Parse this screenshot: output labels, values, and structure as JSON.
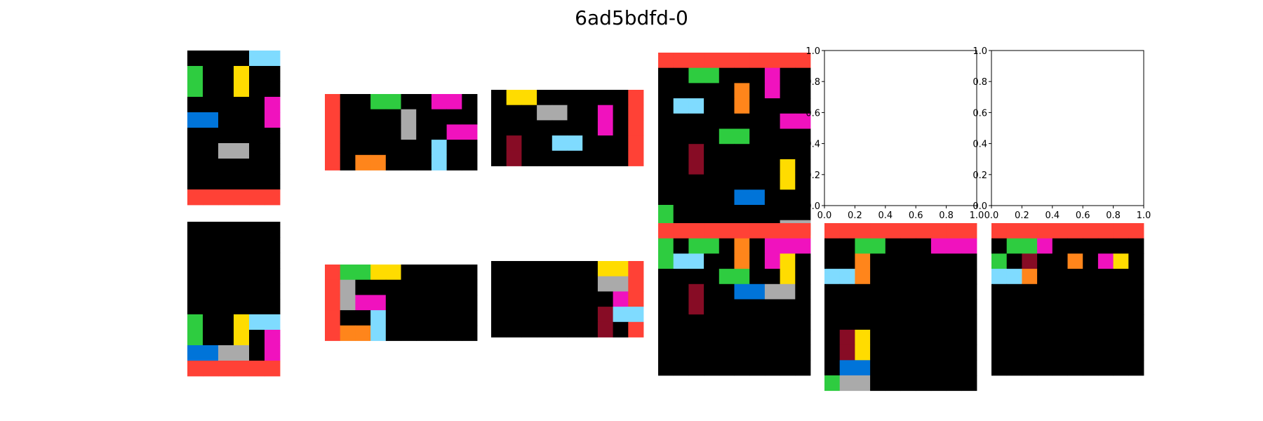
{
  "title": "6ad5bdfd-0",
  "colors": {
    "0": "#000000",
    "1": "#0074D9",
    "2": "#FF4136",
    "3": "#2ECC40",
    "4": "#FFDC00",
    "5": "#AAAAAA",
    "6": "#F012BE",
    "7": "#FF851B",
    "8": "#7FDBFF",
    "9": "#870C25"
  },
  "empty_axes_ticks": [
    "0.0",
    "0.2",
    "0.4",
    "0.6",
    "0.8",
    "1.0"
  ],
  "panels": [
    {
      "id": "train1-input",
      "grid": [
        [
          0,
          0,
          0,
          0,
          8,
          8
        ],
        [
          3,
          0,
          0,
          4,
          0,
          0
        ],
        [
          3,
          0,
          0,
          4,
          0,
          0
        ],
        [
          0,
          0,
          0,
          0,
          0,
          6
        ],
        [
          1,
          1,
          0,
          0,
          0,
          6
        ],
        [
          0,
          0,
          0,
          0,
          0,
          0
        ],
        [
          0,
          0,
          5,
          5,
          0,
          0
        ],
        [
          0,
          0,
          0,
          0,
          0,
          0
        ],
        [
          0,
          0,
          0,
          0,
          0,
          0
        ],
        [
          2,
          2,
          2,
          2,
          2,
          2
        ]
      ]
    },
    {
      "id": "train1-output",
      "grid": [
        [
          0,
          0,
          0,
          0,
          0,
          0
        ],
        [
          0,
          0,
          0,
          0,
          0,
          0
        ],
        [
          0,
          0,
          0,
          0,
          0,
          0
        ],
        [
          0,
          0,
          0,
          0,
          0,
          0
        ],
        [
          0,
          0,
          0,
          0,
          0,
          0
        ],
        [
          0,
          0,
          0,
          0,
          0,
          0
        ],
        [
          3,
          0,
          0,
          4,
          8,
          8
        ],
        [
          3,
          0,
          0,
          4,
          0,
          6
        ],
        [
          1,
          1,
          5,
          5,
          0,
          6
        ],
        [
          2,
          2,
          2,
          2,
          2,
          2
        ]
      ]
    },
    {
      "id": "train2-input",
      "grid": [
        [
          2,
          0,
          0,
          3,
          3,
          0,
          0,
          6,
          6,
          0
        ],
        [
          2,
          0,
          0,
          0,
          0,
          5,
          0,
          0,
          0,
          0
        ],
        [
          2,
          0,
          0,
          0,
          0,
          5,
          0,
          0,
          6,
          6
        ],
        [
          2,
          0,
          0,
          0,
          0,
          0,
          0,
          8,
          0,
          0
        ],
        [
          2,
          0,
          7,
          7,
          0,
          0,
          0,
          8,
          0,
          0
        ]
      ]
    },
    {
      "id": "train2-output",
      "grid": [
        [
          2,
          3,
          3,
          4,
          4,
          0,
          0,
          0,
          0,
          0
        ],
        [
          2,
          5,
          0,
          0,
          0,
          0,
          0,
          0,
          0,
          0
        ],
        [
          2,
          5,
          6,
          6,
          0,
          0,
          0,
          0,
          0,
          0
        ],
        [
          2,
          0,
          0,
          8,
          0,
          0,
          0,
          0,
          0,
          0
        ],
        [
          2,
          7,
          7,
          8,
          0,
          0,
          0,
          0,
          0,
          0
        ]
      ]
    },
    {
      "id": "train3-input",
      "grid": [
        [
          0,
          4,
          4,
          0,
          0,
          0,
          0,
          0,
          0,
          2
        ],
        [
          0,
          0,
          0,
          5,
          5,
          0,
          0,
          6,
          0,
          2
        ],
        [
          0,
          0,
          0,
          0,
          0,
          0,
          0,
          6,
          0,
          2
        ],
        [
          0,
          9,
          0,
          0,
          8,
          8,
          0,
          0,
          0,
          2
        ],
        [
          0,
          9,
          0,
          0,
          0,
          0,
          0,
          0,
          0,
          2
        ]
      ]
    },
    {
      "id": "train3-output",
      "grid": [
        [
          0,
          0,
          0,
          0,
          0,
          0,
          0,
          4,
          4,
          2
        ],
        [
          0,
          0,
          0,
          0,
          0,
          0,
          0,
          5,
          5,
          2
        ],
        [
          0,
          0,
          0,
          0,
          0,
          0,
          0,
          0,
          6,
          2
        ],
        [
          0,
          0,
          0,
          0,
          0,
          0,
          0,
          9,
          8,
          8
        ],
        [
          0,
          0,
          0,
          0,
          0,
          0,
          0,
          9,
          0,
          2
        ]
      ]
    },
    {
      "id": "train4-input",
      "grid": [
        [
          2,
          2,
          2,
          2,
          2,
          2,
          2,
          2,
          2,
          2
        ],
        [
          0,
          0,
          3,
          3,
          0,
          0,
          0,
          6,
          0,
          0
        ],
        [
          0,
          0,
          0,
          0,
          0,
          7,
          0,
          6,
          0,
          0
        ],
        [
          0,
          8,
          8,
          0,
          0,
          7,
          0,
          0,
          0,
          0
        ],
        [
          0,
          0,
          0,
          0,
          0,
          0,
          0,
          0,
          6,
          6
        ],
        [
          0,
          0,
          0,
          0,
          3,
          3,
          0,
          0,
          0,
          0
        ],
        [
          0,
          0,
          9,
          0,
          0,
          0,
          0,
          0,
          0,
          0
        ],
        [
          0,
          0,
          9,
          0,
          0,
          0,
          0,
          0,
          4,
          0
        ],
        [
          0,
          0,
          0,
          0,
          0,
          0,
          0,
          0,
          4,
          0
        ],
        [
          0,
          0,
          0,
          0,
          0,
          1,
          1,
          0,
          0,
          0
        ],
        [
          3,
          0,
          0,
          0,
          0,
          0,
          0,
          0,
          0,
          0
        ],
        [
          3,
          0,
          0,
          0,
          0,
          0,
          0,
          0,
          5,
          5
        ]
      ]
    },
    {
      "id": "train4-output",
      "grid": [
        [
          2,
          2,
          2,
          2,
          2,
          2,
          2,
          2,
          2,
          2
        ],
        [
          3,
          0,
          3,
          3,
          0,
          7,
          0,
          6,
          6,
          6
        ],
        [
          3,
          8,
          8,
          0,
          0,
          7,
          0,
          6,
          4,
          0
        ],
        [
          0,
          0,
          0,
          0,
          3,
          3,
          0,
          0,
          4,
          0
        ],
        [
          0,
          0,
          9,
          0,
          0,
          1,
          1,
          5,
          5,
          0
        ],
        [
          0,
          0,
          9,
          0,
          0,
          0,
          0,
          0,
          0,
          0
        ],
        [
          0,
          0,
          0,
          0,
          0,
          0,
          0,
          0,
          0,
          0
        ],
        [
          0,
          0,
          0,
          0,
          0,
          0,
          0,
          0,
          0,
          0
        ],
        [
          0,
          0,
          0,
          0,
          0,
          0,
          0,
          0,
          0,
          0
        ],
        [
          0,
          0,
          0,
          0,
          0,
          0,
          0,
          0,
          0,
          0
        ]
      ]
    },
    {
      "id": "test1-output",
      "grid": [
        [
          2,
          2,
          2,
          2,
          2,
          2,
          2,
          2,
          2,
          2
        ],
        [
          0,
          0,
          3,
          3,
          0,
          0,
          0,
          6,
          6,
          6
        ],
        [
          0,
          0,
          7,
          0,
          0,
          0,
          0,
          0,
          0,
          0
        ],
        [
          8,
          8,
          7,
          0,
          0,
          0,
          0,
          0,
          0,
          0
        ],
        [
          0,
          0,
          0,
          0,
          0,
          0,
          0,
          0,
          0,
          0
        ],
        [
          0,
          0,
          0,
          0,
          0,
          0,
          0,
          0,
          0,
          0
        ],
        [
          0,
          0,
          0,
          0,
          0,
          0,
          0,
          0,
          0,
          0
        ],
        [
          0,
          9,
          4,
          0,
          0,
          0,
          0,
          0,
          0,
          0
        ],
        [
          0,
          9,
          4,
          0,
          0,
          0,
          0,
          0,
          0,
          0
        ],
        [
          0,
          1,
          1,
          0,
          0,
          0,
          0,
          0,
          0,
          0
        ],
        [
          3,
          5,
          5,
          0,
          0,
          0,
          0,
          0,
          0,
          0
        ]
      ]
    },
    {
      "id": "test2-output",
      "grid": [
        [
          2,
          2,
          2,
          2,
          2,
          2,
          2,
          2,
          2,
          2
        ],
        [
          0,
          3,
          3,
          6,
          0,
          0,
          0,
          0,
          0,
          0
        ],
        [
          3,
          0,
          9,
          0,
          0,
          7,
          0,
          6,
          4,
          0
        ],
        [
          8,
          8,
          7,
          0,
          0,
          0,
          0,
          0,
          0,
          0
        ],
        [
          0,
          0,
          0,
          0,
          0,
          0,
          0,
          0,
          0,
          0
        ],
        [
          0,
          0,
          0,
          0,
          0,
          0,
          0,
          0,
          0,
          0
        ],
        [
          0,
          0,
          0,
          0,
          0,
          0,
          0,
          0,
          0,
          0
        ],
        [
          0,
          0,
          0,
          0,
          0,
          0,
          0,
          0,
          0,
          0
        ],
        [
          0,
          0,
          0,
          0,
          0,
          0,
          0,
          0,
          0,
          0
        ],
        [
          0,
          0,
          0,
          0,
          0,
          0,
          0,
          0,
          0,
          0
        ]
      ]
    }
  ]
}
